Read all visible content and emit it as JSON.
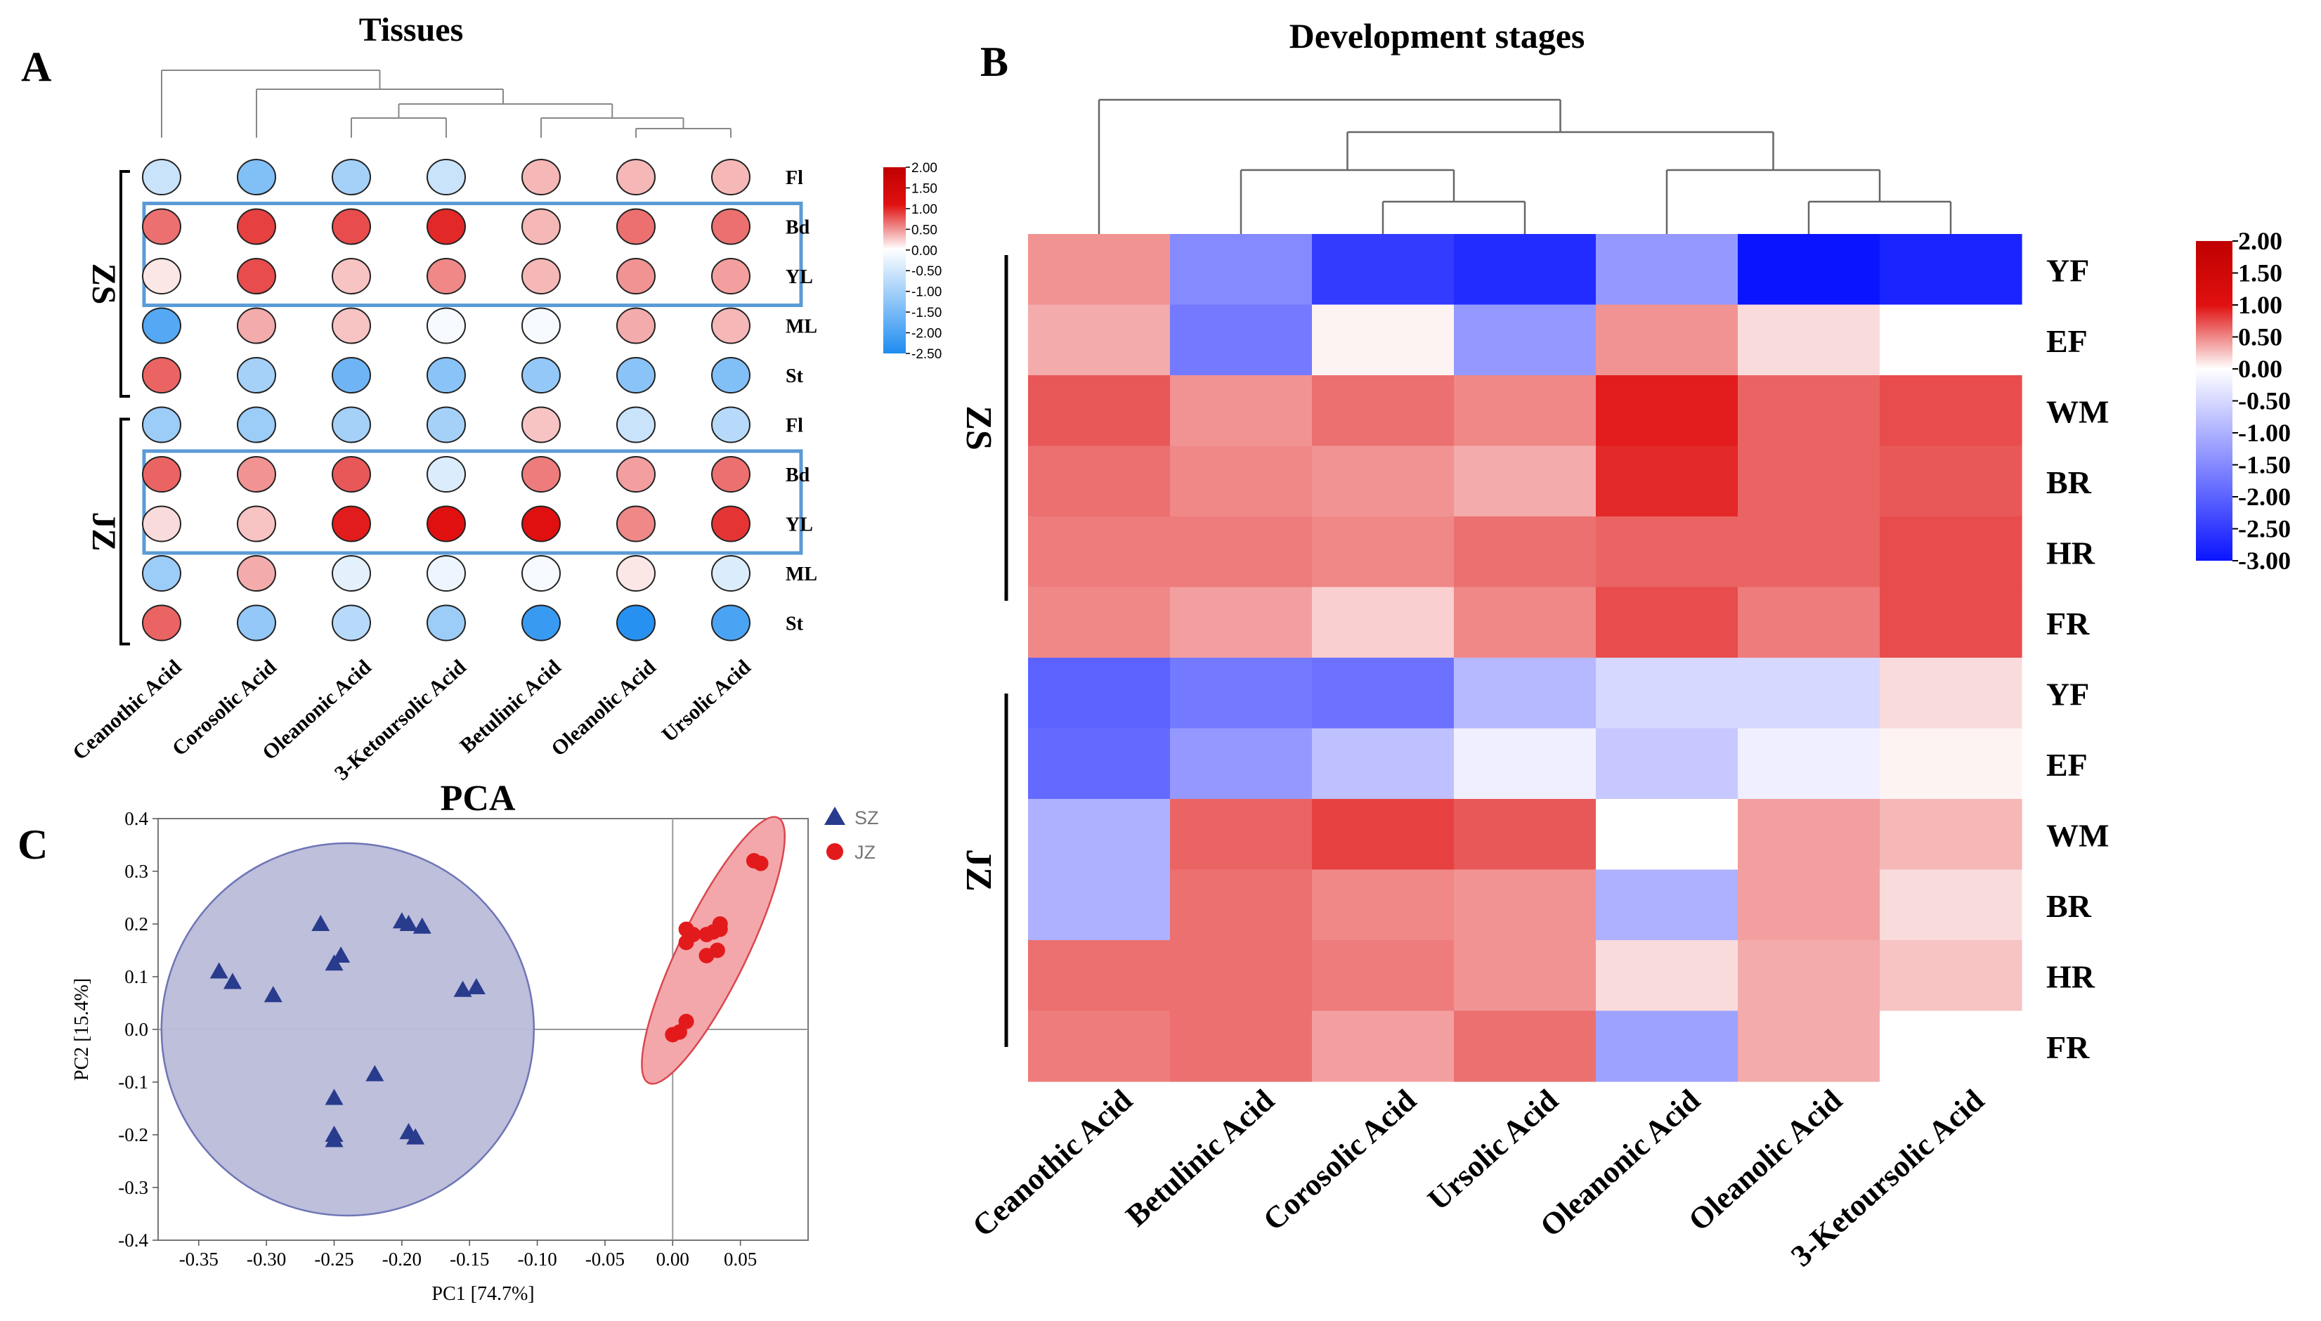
{
  "colors": {
    "deep_blue": "#0a14ff",
    "mid_blue": "#1e8cf0",
    "white": "#ffffff",
    "red": "#e01010",
    "dark_red": "#c00000",
    "frame_blue": "#5b9bd5",
    "pca_circle_fill": "#b9bcd9",
    "pca_circle_stroke": "#6e75b5",
    "pca_ellipse_fill": "#f4a7ab",
    "pca_ellipse_stroke": "#d9474f",
    "sz_marker": "#283b8c",
    "jz_marker": "#e31a1c"
  },
  "chart_data": [
    {
      "panel": "A",
      "type": "heatmap",
      "title": "Tissues",
      "columns": [
        "Ceanothic Acid",
        "Corosolic Acid",
        "Oleanonic Acid",
        "3-Ketoursolic Acid",
        "Betulinic Acid",
        "Oleanolic Acid",
        "Ursolic Acid"
      ],
      "groups": [
        {
          "label": "ZS",
          "rows": [
            "Fl",
            "Bd",
            "YL",
            "ML",
            "St"
          ]
        },
        {
          "label": "JZ",
          "rows": [
            "Fl",
            "Bd",
            "YL",
            "ML",
            "St"
          ]
        }
      ],
      "values": [
        [
          -0.6,
          -1.4,
          -1.0,
          -0.6,
          0.6,
          0.6,
          0.6
        ],
        [
          1.2,
          1.6,
          1.5,
          1.8,
          0.6,
          1.2,
          1.2
        ],
        [
          0.2,
          1.5,
          0.5,
          1.0,
          0.6,
          0.9,
          0.8
        ],
        [
          -1.9,
          0.7,
          0.5,
          -0.1,
          -0.1,
          0.7,
          0.6
        ],
        [
          1.3,
          -1.0,
          -1.6,
          -1.3,
          -1.2,
          -1.3,
          -1.4
        ],
        [
          -1.1,
          -1.1,
          -1.0,
          -1.0,
          0.5,
          -0.6,
          -0.8
        ],
        [
          1.3,
          0.9,
          1.4,
          -0.4,
          1.1,
          0.8,
          1.2
        ],
        [
          0.3,
          0.5,
          1.9,
          2.0,
          2.0,
          1.0,
          1.7
        ],
        [
          -1.1,
          0.7,
          -0.3,
          -0.2,
          -0.1,
          0.2,
          -0.4
        ],
        [
          1.3,
          -1.2,
          -0.8,
          -1.1,
          -2.2,
          -2.4,
          -2.0
        ]
      ],
      "highlight_boxes": [
        {
          "group": "ZS",
          "rows": [
            "Bd",
            "YL"
          ]
        },
        {
          "group": "JZ",
          "rows": [
            "Bd",
            "YL"
          ]
        }
      ],
      "colorbar": {
        "ticks": [
          "2.00",
          "1.50",
          "1.00",
          "0.50",
          "0.00",
          "-0.50",
          "-1.00",
          "-1.50",
          "-2.00",
          "-2.50"
        ],
        "range": [
          -2.5,
          2.0
        ]
      }
    },
    {
      "panel": "B",
      "type": "heatmap",
      "title": "Development stages",
      "columns": [
        "Ceanothic Acid",
        "Betulinic Acid",
        "Corosolic Acid",
        "Ursolic Acid",
        "Oleanonic Acid",
        "Oleanolic Acid",
        "3-Ketoursolic Acid"
      ],
      "groups": [
        {
          "label": "ZS",
          "rows": [
            "YF",
            "EF",
            "WM",
            "BR",
            "HR",
            "FR"
          ]
        },
        {
          "label": "JZ",
          "rows": [
            "YF",
            "EF",
            "WM",
            "BR",
            "HR",
            "FR"
          ]
        }
      ],
      "values": [
        [
          0.9,
          -1.5,
          -2.5,
          -2.7,
          -1.3,
          -3.0,
          -2.8
        ],
        [
          0.7,
          -1.7,
          0.1,
          -1.3,
          0.9,
          0.3,
          0.0
        ],
        [
          1.4,
          0.9,
          1.2,
          1.0,
          1.9,
          1.3,
          1.5
        ],
        [
          1.2,
          1.0,
          0.9,
          0.7,
          1.8,
          1.3,
          1.4
        ],
        [
          1.1,
          1.1,
          1.0,
          1.2,
          1.3,
          1.3,
          1.5
        ],
        [
          1.0,
          0.8,
          0.4,
          1.0,
          1.5,
          1.1,
          1.5
        ],
        [
          -2.0,
          -1.7,
          -1.8,
          -0.9,
          -0.5,
          -0.5,
          0.3
        ],
        [
          -1.9,
          -1.3,
          -0.8,
          -0.2,
          -0.7,
          -0.2,
          0.1
        ],
        [
          -1.0,
          1.3,
          1.6,
          1.4,
          0.0,
          0.8,
          0.6
        ],
        [
          -1.0,
          1.2,
          1.0,
          0.9,
          -1.0,
          0.8,
          0.3
        ],
        [
          1.2,
          1.2,
          1.1,
          0.9,
          0.3,
          0.7,
          0.5
        ],
        [
          1.1,
          1.2,
          0.8,
          1.2,
          -1.2,
          0.7,
          0.0
        ]
      ],
      "colorbar": {
        "ticks": [
          "2.00",
          "1.50",
          "1.00",
          "0.50",
          "0.00",
          "-0.50",
          "-1.00",
          "-1.50",
          "-2.00",
          "-2.50",
          "-3.00"
        ],
        "range": [
          -3.0,
          2.0
        ]
      }
    },
    {
      "panel": "C",
      "type": "scatter",
      "title": "PCA",
      "xlabel": "PC1 [74.7%]",
      "ylabel": "PC2 [15.4%]",
      "xlim": [
        -0.38,
        0.1
      ],
      "ylim": [
        -0.4,
        0.4
      ],
      "xticks": [
        "-0.35",
        "-0.30",
        "-0.25",
        "-0.20",
        "-0.15",
        "-0.10",
        "-0.05",
        "0.00",
        "0.05"
      ],
      "yticks": [
        "0.4",
        "0.3",
        "0.2",
        "0.1",
        "0.0",
        "-0.1",
        "-0.2",
        "-0.3",
        "-0.4"
      ],
      "series": [
        {
          "name": "SZ",
          "marker": "triangle",
          "points": [
            [
              -0.335,
              0.11
            ],
            [
              -0.325,
              0.09
            ],
            [
              -0.295,
              0.065
            ],
            [
              -0.26,
              0.2
            ],
            [
              -0.25,
              0.125
            ],
            [
              -0.245,
              0.14
            ],
            [
              -0.2,
              0.205
            ],
            [
              -0.195,
              0.2
            ],
            [
              -0.185,
              0.195
            ],
            [
              -0.155,
              0.075
            ],
            [
              -0.145,
              0.08
            ],
            [
              -0.22,
              -0.085
            ],
            [
              -0.25,
              -0.13
            ],
            [
              -0.25,
              -0.2
            ],
            [
              -0.25,
              -0.21
            ],
            [
              -0.195,
              -0.195
            ],
            [
              -0.19,
              -0.205
            ]
          ]
        },
        {
          "name": "JZ",
          "marker": "circle",
          "points": [
            [
              0.0,
              -0.01
            ],
            [
              0.005,
              -0.005
            ],
            [
              0.01,
              0.015
            ],
            [
              0.015,
              0.18
            ],
            [
              0.01,
              0.19
            ],
            [
              0.01,
              0.165
            ],
            [
              0.025,
              0.18
            ],
            [
              0.025,
              0.14
            ],
            [
              0.03,
              0.185
            ],
            [
              0.035,
              0.19
            ],
            [
              0.035,
              0.2
            ],
            [
              0.033,
              0.15
            ],
            [
              0.06,
              0.32
            ],
            [
              0.065,
              0.315
            ]
          ]
        }
      ]
    }
  ],
  "panel_labels": {
    "a": "A",
    "b": "B",
    "c": "C"
  }
}
